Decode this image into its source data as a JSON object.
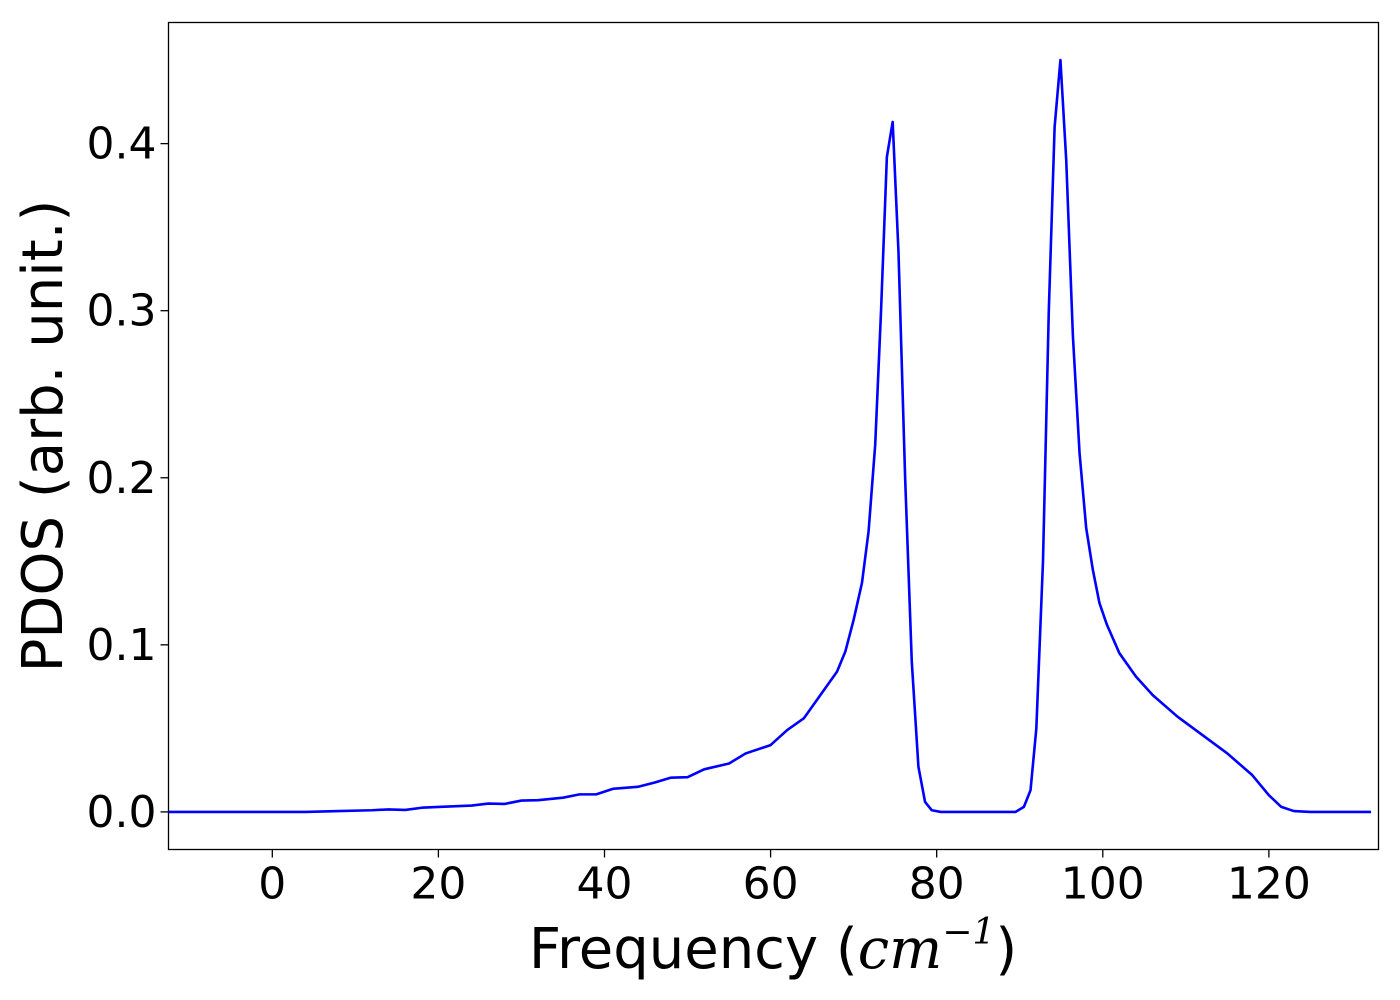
{
  "chart_data": {
    "type": "line",
    "title": "",
    "xlabel": "Frequency",
    "xlabel_unit_base": "cm",
    "xlabel_unit_exp": "−1",
    "ylabel": "PDOS (arb. unit.)",
    "xlim": [
      -12.5,
      133.2
    ],
    "ylim": [
      -0.0225,
      0.4725
    ],
    "xticks": [
      0,
      20,
      40,
      60,
      80,
      100,
      120
    ],
    "xtick_labels": [
      "0",
      "20",
      "40",
      "60",
      "80",
      "100",
      "120"
    ],
    "yticks": [
      0.0,
      0.1,
      0.2,
      0.3,
      0.4
    ],
    "ytick_labels": [
      "0.0",
      "0.1",
      "0.2",
      "0.3",
      "0.4"
    ],
    "grid": false,
    "legend": "none",
    "series": [
      {
        "color": "#0000ff",
        "points": [
          [
            -12.5,
            0.0
          ],
          [
            -5,
            0.0
          ],
          [
            0,
            0.0
          ],
          [
            4,
            0.0
          ],
          [
            8,
            0.0005
          ],
          [
            12,
            0.001
          ],
          [
            14,
            0.0015
          ],
          [
            16,
            0.0012
          ],
          [
            18,
            0.0025
          ],
          [
            20,
            0.003
          ],
          [
            24,
            0.0038
          ],
          [
            26,
            0.005
          ],
          [
            28,
            0.0048
          ],
          [
            30,
            0.0068
          ],
          [
            32,
            0.007
          ],
          [
            35,
            0.0085
          ],
          [
            37,
            0.0105
          ],
          [
            39,
            0.0105
          ],
          [
            41,
            0.0138
          ],
          [
            44,
            0.015
          ],
          [
            46,
            0.0175
          ],
          [
            48,
            0.0205
          ],
          [
            50,
            0.0208
          ],
          [
            52,
            0.0255
          ],
          [
            55,
            0.029
          ],
          [
            57,
            0.035
          ],
          [
            60,
            0.04
          ],
          [
            62,
            0.049
          ],
          [
            64,
            0.056
          ],
          [
            66,
            0.07
          ],
          [
            68,
            0.084
          ],
          [
            69,
            0.096
          ],
          [
            70,
            0.115
          ],
          [
            71,
            0.137
          ],
          [
            71.8,
            0.168
          ],
          [
            72.6,
            0.22
          ],
          [
            73.3,
            0.3
          ],
          [
            74,
            0.392
          ],
          [
            74.7,
            0.413
          ],
          [
            75.4,
            0.335
          ],
          [
            76.2,
            0.2
          ],
          [
            77,
            0.09
          ],
          [
            77.8,
            0.027
          ],
          [
            78.6,
            0.006
          ],
          [
            79.4,
            0.001
          ],
          [
            80.5,
            0.0
          ],
          [
            85,
            0.0
          ],
          [
            89.5,
            0.0
          ],
          [
            90.5,
            0.003
          ],
          [
            91.3,
            0.013
          ],
          [
            92,
            0.05
          ],
          [
            92.8,
            0.15
          ],
          [
            93.5,
            0.3
          ],
          [
            94.2,
            0.41
          ],
          [
            94.9,
            0.45
          ],
          [
            95.6,
            0.39
          ],
          [
            96.4,
            0.285
          ],
          [
            97.2,
            0.215
          ],
          [
            98,
            0.17
          ],
          [
            98.8,
            0.145
          ],
          [
            99.6,
            0.125
          ],
          [
            100.5,
            0.112
          ],
          [
            102,
            0.095
          ],
          [
            104,
            0.081
          ],
          [
            106,
            0.07
          ],
          [
            109,
            0.057
          ],
          [
            112,
            0.046
          ],
          [
            115,
            0.035
          ],
          [
            118,
            0.022
          ],
          [
            120,
            0.01
          ],
          [
            121.5,
            0.003
          ],
          [
            123,
            0.0005
          ],
          [
            125,
            0.0
          ],
          [
            132.3,
            0.0
          ]
        ]
      }
    ]
  }
}
